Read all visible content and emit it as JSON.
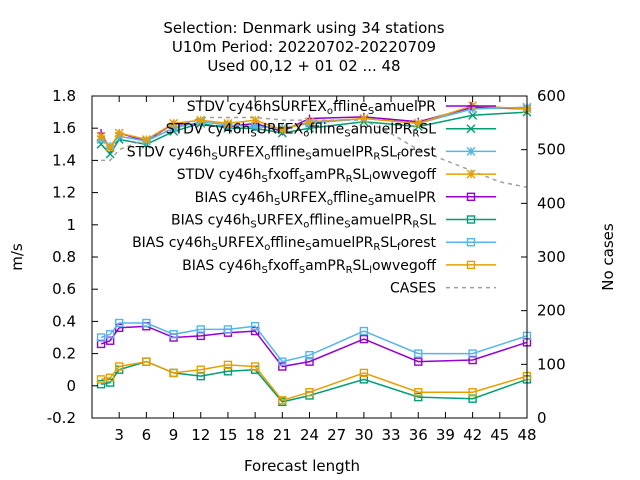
{
  "chart_data": {
    "type": "line",
    "title_lines": [
      "Selection: Denmark using    34 stations",
      "U10m   Period: 20220702-20220709",
      "Used  00,12  + 01 02 ... 48"
    ],
    "xlabel": "Forecast length",
    "ylabel": "m/s",
    "y2label": "No cases",
    "xlim": [
      0,
      48
    ],
    "ylim": [
      -0.2,
      1.8
    ],
    "y2lim": [
      0,
      600
    ],
    "xticks": [
      3,
      6,
      9,
      12,
      15,
      18,
      21,
      24,
      27,
      30,
      33,
      36,
      39,
      42,
      45,
      48
    ],
    "yticks": [
      -0.2,
      0,
      0.2,
      0.4,
      0.6,
      0.8,
      1,
      1.2,
      1.4,
      1.6,
      1.8
    ],
    "ytick_labels": [
      "-0.2",
      "0",
      "0.2",
      "0.4",
      "0.6",
      "0.8",
      "1",
      "1.2",
      "1.4",
      "1.6",
      "1.8"
    ],
    "y2ticks": [
      0,
      100,
      200,
      300,
      400,
      500,
      600
    ],
    "legend_position": "top-right",
    "x": [
      1,
      2,
      3,
      6,
      9,
      12,
      15,
      18,
      21,
      24,
      30,
      36,
      42,
      48
    ],
    "series": [
      {
        "legend_main": "STDV cy46h",
        "legend_parts": [
          [
            "SURFEX",
            0
          ],
          [
            "o",
            1
          ],
          [
            "ffline",
            0
          ],
          [
            "S",
            1
          ],
          [
            "amuelPR",
            0
          ]
        ],
        "color": "#9400d3",
        "marker": "plus",
        "axis": "y",
        "values": [
          1.57,
          1.47,
          1.57,
          1.52,
          1.63,
          1.62,
          1.61,
          1.63,
          1.58,
          1.66,
          1.67,
          1.64,
          1.73,
          1.72
        ]
      },
      {
        "legend_main": "STDV cy46h",
        "legend_parts": [
          [
            "S",
            1
          ],
          [
            "URFEX",
            0
          ],
          [
            "o",
            1
          ],
          [
            "ffline",
            0
          ],
          [
            "S",
            1
          ],
          [
            "amuelPR",
            0
          ],
          [
            "R",
            1
          ],
          [
            "SL",
            0
          ]
        ],
        "color": "#009e73",
        "marker": "x",
        "axis": "y",
        "values": [
          1.5,
          1.44,
          1.53,
          1.5,
          1.58,
          1.63,
          1.6,
          1.6,
          1.57,
          1.6,
          1.64,
          1.61,
          1.68,
          1.7
        ]
      },
      {
        "legend_main": "STDV cy46h",
        "legend_parts": [
          [
            "S",
            1
          ],
          [
            "URFEX",
            0
          ],
          [
            "o",
            1
          ],
          [
            "ffline",
            0
          ],
          [
            "S",
            1
          ],
          [
            "amuelPR",
            0
          ],
          [
            "R",
            1
          ],
          [
            "SL",
            0
          ],
          [
            "f",
            1
          ],
          [
            "orest",
            0
          ]
        ],
        "color": "#56b4e9",
        "marker": "asterisk",
        "axis": "y",
        "values": [
          1.53,
          1.49,
          1.55,
          1.52,
          1.6,
          1.64,
          1.62,
          1.61,
          1.6,
          1.63,
          1.66,
          1.63,
          1.72,
          1.73
        ]
      },
      {
        "legend_main": "STDV cy46h",
        "legend_parts": [
          [
            "S",
            1
          ],
          [
            "fxoff",
            0
          ],
          [
            "S",
            1
          ],
          [
            "amPR",
            0
          ],
          [
            "R",
            1
          ],
          [
            "SL",
            0
          ],
          [
            "l",
            1
          ],
          [
            "owvegoff",
            0
          ]
        ],
        "color": "#e69f00",
        "marker": "asterisk",
        "axis": "y",
        "values": [
          1.55,
          1.48,
          1.57,
          1.53,
          1.63,
          1.65,
          1.63,
          1.65,
          1.59,
          1.64,
          1.66,
          1.63,
          1.74,
          1.72
        ]
      },
      {
        "legend_main": "BIAS cy46h",
        "legend_parts": [
          [
            "S",
            1
          ],
          [
            "URFEX",
            0
          ],
          [
            "o",
            1
          ],
          [
            "ffline",
            0
          ],
          [
            "S",
            1
          ],
          [
            "amuelPR",
            0
          ]
        ],
        "color": "#9400d3",
        "marker": "square",
        "axis": "y",
        "values": [
          0.26,
          0.28,
          0.36,
          0.37,
          0.3,
          0.31,
          0.33,
          0.34,
          0.12,
          0.15,
          0.29,
          0.15,
          0.16,
          0.27
        ]
      },
      {
        "legend_main": "BIAS cy46h",
        "legend_parts": [
          [
            "S",
            1
          ],
          [
            "URFEX",
            0
          ],
          [
            "o",
            1
          ],
          [
            "ffline",
            0
          ],
          [
            "S",
            1
          ],
          [
            "amuelPR",
            0
          ],
          [
            "R",
            1
          ],
          [
            "SL",
            0
          ]
        ],
        "color": "#009e73",
        "marker": "square",
        "axis": "y",
        "values": [
          0.01,
          0.02,
          0.1,
          0.15,
          0.08,
          0.06,
          0.09,
          0.1,
          -0.1,
          -0.06,
          0.04,
          -0.07,
          -0.08,
          0.04
        ]
      },
      {
        "legend_main": "BIAS cy46h",
        "legend_parts": [
          [
            "S",
            1
          ],
          [
            "URFEX",
            0
          ],
          [
            "o",
            1
          ],
          [
            "ffline",
            0
          ],
          [
            "S",
            1
          ],
          [
            "amuelPR",
            0
          ],
          [
            "R",
            1
          ],
          [
            "SL",
            0
          ],
          [
            "f",
            1
          ],
          [
            "orest",
            0
          ]
        ],
        "color": "#56b4e9",
        "marker": "square",
        "axis": "y",
        "values": [
          0.3,
          0.32,
          0.39,
          0.39,
          0.32,
          0.35,
          0.35,
          0.37,
          0.15,
          0.19,
          0.34,
          0.2,
          0.2,
          0.31
        ]
      },
      {
        "legend_main": "BIAS cy46h",
        "legend_parts": [
          [
            "S",
            1
          ],
          [
            "fxoff",
            0
          ],
          [
            "S",
            1
          ],
          [
            "amPR",
            0
          ],
          [
            "R",
            1
          ],
          [
            "SL",
            0
          ],
          [
            "l",
            1
          ],
          [
            "owvegoff",
            0
          ]
        ],
        "color": "#e69f00",
        "marker": "square",
        "axis": "y",
        "values": [
          0.04,
          0.05,
          0.12,
          0.15,
          0.08,
          0.1,
          0.13,
          0.12,
          -0.09,
          -0.04,
          0.08,
          -0.04,
          -0.04,
          0.06
        ]
      },
      {
        "legend_main": "CASES",
        "legend_parts": [],
        "color": "#a0a0a0",
        "marker": "none",
        "dashed": true,
        "axis": "y2",
        "x": [
          1,
          2,
          3,
          6,
          9,
          12,
          15,
          18,
          21,
          24,
          27,
          30,
          33,
          36,
          39,
          42,
          45,
          48
        ],
        "values": [
          480,
          480,
          500,
          520,
          540,
          560,
          560,
          560,
          555,
          555,
          555,
          555,
          530,
          500,
          480,
          460,
          440,
          430
        ]
      }
    ]
  }
}
